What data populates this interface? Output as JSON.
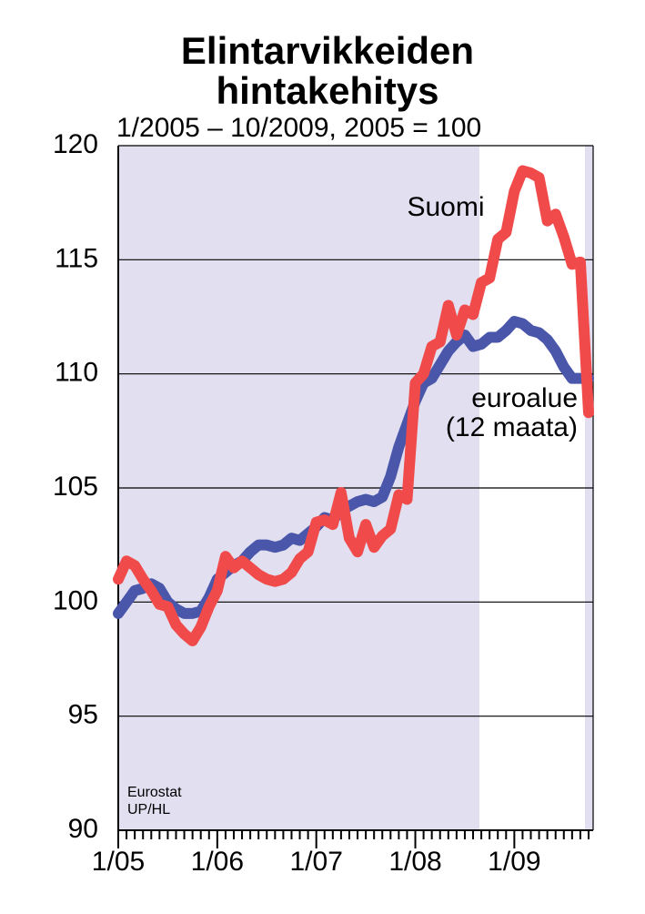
{
  "chart_data": {
    "type": "line",
    "title": "Elintarvikkeiden hintakehitys",
    "subtitle": "1/2005 – 10/2009, 2005 = 100",
    "categories": [
      "1/05",
      null,
      null,
      null,
      null,
      null,
      null,
      null,
      null,
      null,
      null,
      null,
      "1/06",
      null,
      null,
      null,
      null,
      null,
      null,
      null,
      null,
      null,
      null,
      null,
      "1/07",
      null,
      null,
      null,
      null,
      null,
      null,
      null,
      null,
      null,
      null,
      null,
      "1/08",
      null,
      null,
      null,
      null,
      null,
      null,
      null,
      null,
      null,
      null,
      null,
      "1/09",
      null,
      null,
      null,
      null,
      null,
      null,
      null,
      null,
      null
    ],
    "series": [
      {
        "name": "euroalue",
        "color": "#4a56aa",
        "values": [
          99.5,
          100.0,
          100.5,
          100.6,
          100.8,
          100.6,
          100.0,
          99.7,
          99.5,
          99.5,
          99.6,
          100.2,
          101.0,
          101.3,
          101.6,
          101.8,
          102.2,
          102.5,
          102.5,
          102.4,
          102.5,
          102.8,
          102.7,
          103.0,
          103.3,
          103.7,
          103.6,
          104.0,
          104.2,
          104.4,
          104.5,
          104.4,
          104.6,
          105.5,
          106.8,
          107.8,
          108.8,
          109.6,
          109.8,
          110.4,
          111.0,
          111.4,
          111.7,
          111.2,
          111.3,
          111.6,
          111.6,
          111.9,
          112.3,
          112.2,
          111.9,
          111.8,
          111.5,
          111.0,
          110.3,
          109.8,
          109.8,
          109.8
        ]
      },
      {
        "name": "Suomi",
        "color": "#f04a4a",
        "values": [
          101.0,
          101.8,
          101.6,
          101.0,
          100.5,
          99.9,
          99.8,
          99.0,
          98.6,
          98.3,
          98.9,
          99.8,
          100.5,
          102.0,
          101.5,
          101.8,
          101.5,
          101.2,
          101.0,
          100.9,
          101.0,
          101.3,
          101.9,
          102.2,
          103.5,
          103.6,
          103.4,
          104.8,
          102.8,
          102.2,
          103.4,
          102.4,
          102.9,
          103.2,
          104.7,
          104.5,
          109.6,
          110.0,
          111.2,
          111.4,
          113.0,
          111.7,
          112.8,
          112.6,
          114.0,
          114.2,
          115.9,
          116.2,
          118.0,
          118.9,
          118.8,
          118.6,
          116.7,
          117.0,
          116.0,
          114.8,
          114.9,
          108.3
        ]
      }
    ],
    "annotations": [
      "(12 maata)"
    ],
    "source": [
      "Eurostat",
      "UP/HL"
    ],
    "ylim": [
      90,
      120
    ],
    "yticks": [
      90,
      95,
      100,
      105,
      110,
      115,
      120
    ],
    "grid": true
  }
}
